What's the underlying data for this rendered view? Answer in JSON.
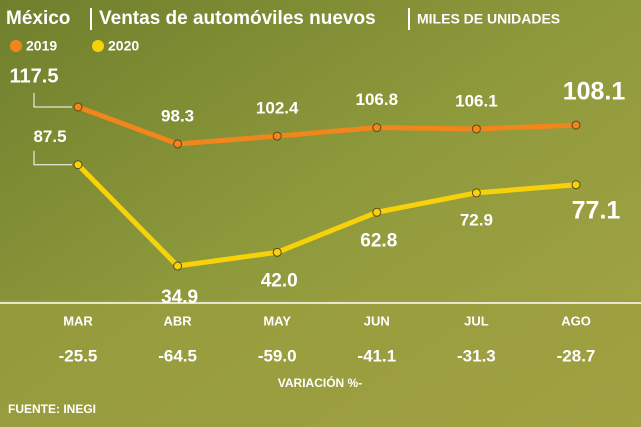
{
  "chart_data": {
    "type": "line",
    "title": "México",
    "subtitle": "Ventas de automóviles nuevos",
    "unit_label": "MILES DE UNIDADES",
    "categories": [
      "MAR",
      "ABR",
      "MAY",
      "JUN",
      "JUL",
      "AGO"
    ],
    "series": [
      {
        "name": "2019",
        "color": "#f0861c",
        "values": [
          117.5,
          98.3,
          102.4,
          106.8,
          106.1,
          108.1
        ]
      },
      {
        "name": "2020",
        "color": "#f7d20a",
        "values": [
          87.5,
          34.9,
          42.0,
          62.8,
          72.9,
          77.1
        ],
        "value_labels": [
          "87.5",
          "34.9",
          "42.0",
          "62.8",
          "72.9",
          "77.1"
        ]
      }
    ],
    "variation": {
      "label": "VARIACIÓN %-",
      "values": [
        -25.5,
        -64.5,
        -59.0,
        -41.1,
        -31.3,
        -28.7
      ],
      "value_labels": [
        "-25.5",
        "-64.5",
        "-59.0",
        "-41.1",
        "-31.3",
        "-28.7"
      ]
    },
    "source": "FUENTE: INEGI"
  }
}
